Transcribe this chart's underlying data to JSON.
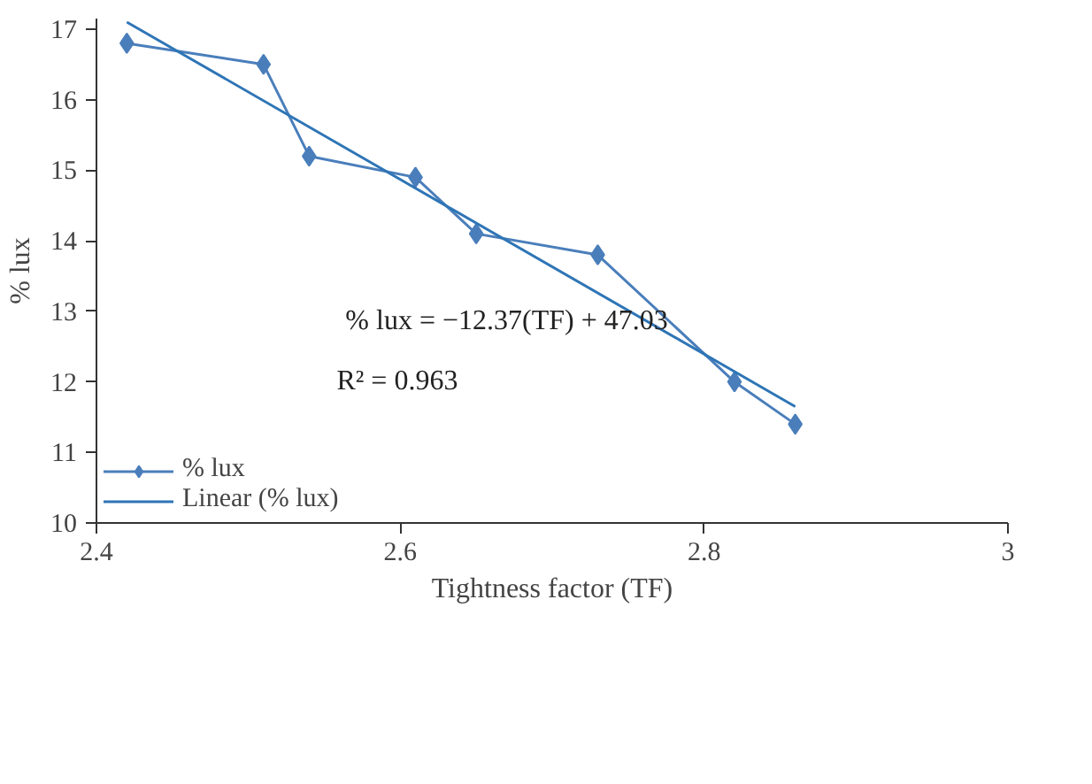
{
  "chart_data": {
    "type": "line",
    "xlabel": "Tightness factor (TF)",
    "ylabel": "% lux",
    "x": [
      2.42,
      2.51,
      2.54,
      2.61,
      2.65,
      2.73,
      2.82,
      2.86
    ],
    "series": [
      {
        "name": "% lux",
        "color": "#4a7ebb",
        "values": [
          16.8,
          16.5,
          15.2,
          14.9,
          14.1,
          13.8,
          12.0,
          11.4
        ],
        "marker": "diamond"
      },
      {
        "name": "Linear (% lux)",
        "color": "#2e75b6",
        "type": "line",
        "x": [
          2.42,
          2.86
        ],
        "values": [
          17.1,
          11.65
        ],
        "marker": "none"
      }
    ],
    "xlim": [
      2.4,
      3.0
    ],
    "ylim": [
      10,
      17.15
    ],
    "xticks": [
      2.4,
      2.6,
      2.8,
      3
    ],
    "yticks": [
      10,
      11,
      12,
      13,
      14,
      15,
      16,
      17
    ],
    "annotations": [
      "% lux = −12.37(TF) + 47.03",
      "R² = 0.963"
    ],
    "grid": false,
    "legend": "bottom left",
    "line_style": "solid"
  }
}
